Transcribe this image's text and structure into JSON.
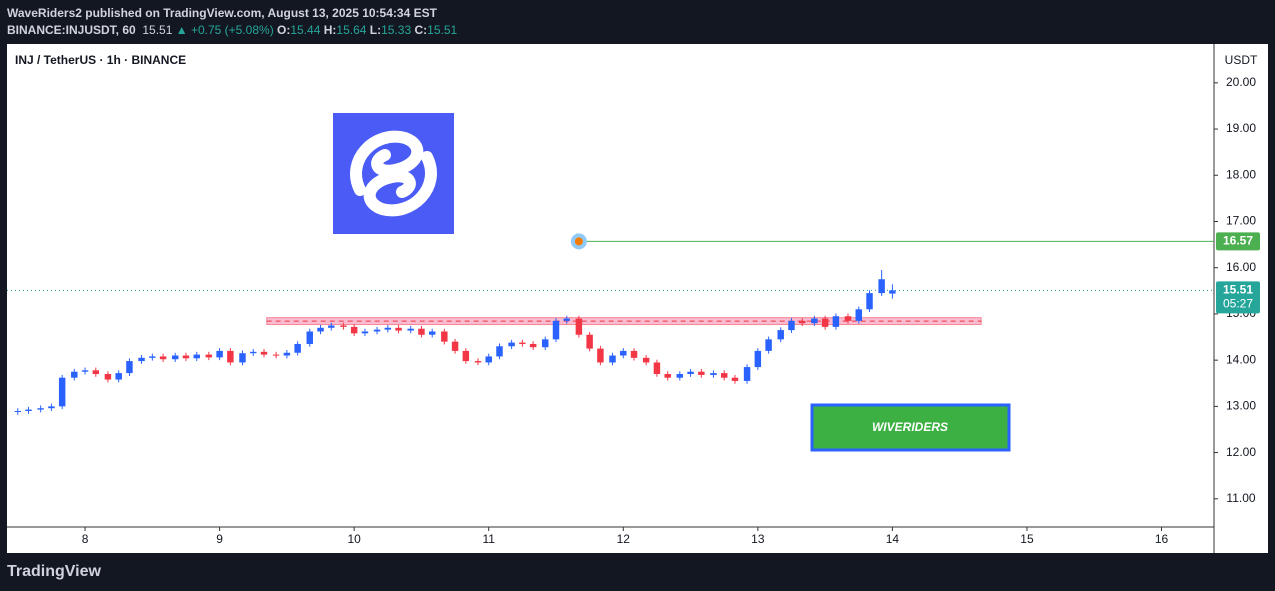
{
  "header": {
    "publisher": "WaveRiders2 published on TradingView.com, August 13, 2025 10:54:34 EST",
    "symbol": "BINANCE:INJUSDT, 60",
    "last": "15.51",
    "change": "▲ +0.75 (+5.08%)",
    "ohlc": [
      {
        "label": "O:",
        "value": "15.44"
      },
      {
        "label": "H:",
        "value": "15.64"
      },
      {
        "label": "L:",
        "value": "15.33"
      },
      {
        "label": "C:",
        "value": "15.51"
      }
    ]
  },
  "footer": {
    "brand": "TradingView"
  },
  "chart_data": {
    "type": "candlestick",
    "title": "INJ / TetherUS · 1h · BINANCE",
    "y_axis_label": "USDT",
    "watermark": "WIVERIDERS",
    "countdown": "05:27",
    "up_color": "#2962ff",
    "down_color": "#f23645",
    "x": [
      7.5,
      7.58,
      7.67,
      7.75,
      7.83,
      7.92,
      8.0,
      8.08,
      8.17,
      8.25,
      8.33,
      8.42,
      8.5,
      8.58,
      8.67,
      8.75,
      8.83,
      8.92,
      9.0,
      9.08,
      9.17,
      9.25,
      9.33,
      9.42,
      9.5,
      9.58,
      9.67,
      9.75,
      9.83,
      9.92,
      10.0,
      10.08,
      10.17,
      10.25,
      10.33,
      10.42,
      10.5,
      10.58,
      10.67,
      10.75,
      10.83,
      10.92,
      11.0,
      11.08,
      11.17,
      11.25,
      11.33,
      11.42,
      11.5,
      11.58,
      11.67,
      11.75,
      11.83,
      11.92,
      12.0,
      12.08,
      12.17,
      12.25,
      12.33,
      12.42,
      12.5,
      12.58,
      12.67,
      12.75,
      12.83,
      12.92,
      13.0,
      13.08,
      13.17,
      13.25,
      13.33,
      13.42,
      13.5,
      13.58,
      13.67,
      13.75,
      13.83,
      13.92,
      14.0
    ],
    "open": [
      12.88,
      12.9,
      12.93,
      12.96,
      13.0,
      13.62,
      13.75,
      13.78,
      13.7,
      13.58,
      13.72,
      13.98,
      14.05,
      14.08,
      14.02,
      14.1,
      14.04,
      14.12,
      14.06,
      14.2,
      13.95,
      14.15,
      14.18,
      14.12,
      14.1,
      14.16,
      14.35,
      14.62,
      14.7,
      14.75,
      14.72,
      14.58,
      14.62,
      14.66,
      14.7,
      14.64,
      14.68,
      14.55,
      14.62,
      14.4,
      14.2,
      13.98,
      13.95,
      14.08,
      14.3,
      14.38,
      14.35,
      14.28,
      14.45,
      14.85,
      14.9,
      14.55,
      14.25,
      13.95,
      14.1,
      14.2,
      14.05,
      13.95,
      13.7,
      13.62,
      13.7,
      13.75,
      13.68,
      13.72,
      13.62,
      13.55,
      13.85,
      14.2,
      14.45,
      14.65,
      14.85,
      14.8,
      14.9,
      14.72,
      14.95,
      14.85,
      15.1,
      15.45,
      15.44
    ],
    "high": [
      12.96,
      12.99,
      13.02,
      13.06,
      13.68,
      13.81,
      13.84,
      13.84,
      13.76,
      13.78,
      14.04,
      14.11,
      14.14,
      14.14,
      14.16,
      14.16,
      14.18,
      14.18,
      14.26,
      14.26,
      14.21,
      14.24,
      14.24,
      14.18,
      14.22,
      14.41,
      14.68,
      14.76,
      14.81,
      14.81,
      14.78,
      14.68,
      14.72,
      14.76,
      14.76,
      14.74,
      14.74,
      14.68,
      14.68,
      14.46,
      14.26,
      14.04,
      14.14,
      14.36,
      14.44,
      14.44,
      14.41,
      14.51,
      14.91,
      14.96,
      14.96,
      14.61,
      14.31,
      14.16,
      14.26,
      14.26,
      14.11,
      14.01,
      13.76,
      13.76,
      13.81,
      13.81,
      13.78,
      13.78,
      13.68,
      13.91,
      14.26,
      14.51,
      14.71,
      14.91,
      14.91,
      14.96,
      14.96,
      15.01,
      15.01,
      15.16,
      15.51,
      15.95,
      15.64
    ],
    "low": [
      12.82,
      12.84,
      12.87,
      12.9,
      12.94,
      13.56,
      13.69,
      13.64,
      13.52,
      13.52,
      13.66,
      13.92,
      13.99,
      13.96,
      13.96,
      13.98,
      13.98,
      14.0,
      14.0,
      13.89,
      13.89,
      14.09,
      14.06,
      14.04,
      14.04,
      14.1,
      14.29,
      14.56,
      14.64,
      14.66,
      14.52,
      14.52,
      14.56,
      14.6,
      14.58,
      14.58,
      14.49,
      14.49,
      14.34,
      14.14,
      13.92,
      13.89,
      13.89,
      14.02,
      14.24,
      14.29,
      14.22,
      14.22,
      14.39,
      14.79,
      14.49,
      14.19,
      13.89,
      13.89,
      14.04,
      13.99,
      13.89,
      13.64,
      13.56,
      13.56,
      13.64,
      13.62,
      13.62,
      13.56,
      13.49,
      13.49,
      13.79,
      14.14,
      14.39,
      14.59,
      14.74,
      14.74,
      14.66,
      14.66,
      14.79,
      14.79,
      15.04,
      15.39,
      15.33
    ],
    "close": [
      12.9,
      12.93,
      12.96,
      13.0,
      13.62,
      13.75,
      13.78,
      13.7,
      13.58,
      13.72,
      13.98,
      14.05,
      14.08,
      14.02,
      14.1,
      14.04,
      14.12,
      14.06,
      14.2,
      13.95,
      14.15,
      14.18,
      14.12,
      14.1,
      14.16,
      14.35,
      14.62,
      14.7,
      14.75,
      14.72,
      14.58,
      14.62,
      14.66,
      14.7,
      14.64,
      14.68,
      14.55,
      14.62,
      14.4,
      14.2,
      13.98,
      13.95,
      14.08,
      14.3,
      14.38,
      14.35,
      14.28,
      14.45,
      14.85,
      14.9,
      14.55,
      14.25,
      13.95,
      14.1,
      14.2,
      14.05,
      13.95,
      13.7,
      13.62,
      13.7,
      13.75,
      13.68,
      13.72,
      13.62,
      13.55,
      13.85,
      14.2,
      14.45,
      14.65,
      14.85,
      14.8,
      14.9,
      14.72,
      14.95,
      14.85,
      15.1,
      15.45,
      15.75,
      15.51
    ],
    "xlim": [
      7.42,
      16.39
    ],
    "xticks": [
      8,
      9,
      10,
      11,
      12,
      13,
      14,
      15,
      16
    ],
    "ylim": [
      10.39,
      20.84
    ],
    "yticks": [
      {
        "value": 11,
        "label": "11.00"
      },
      {
        "value": 12,
        "label": "12.00"
      },
      {
        "value": 13,
        "label": "13.00"
      },
      {
        "value": 14,
        "label": "14.00"
      },
      {
        "value": 15,
        "label": "15.00"
      },
      {
        "value": 16,
        "label": "16.00"
      },
      {
        "value": 17,
        "label": "17.00"
      },
      {
        "value": 18,
        "label": "18.00"
      },
      {
        "value": 19,
        "label": "19.00"
      },
      {
        "value": 20,
        "label": "20.00"
      }
    ],
    "target": {
      "value": 16.57,
      "start": 11.67,
      "color": "#4caf50"
    },
    "support_zone": {
      "low": 14.77,
      "high": 14.92,
      "start": 9.35,
      "end": 14.66
    }
  }
}
